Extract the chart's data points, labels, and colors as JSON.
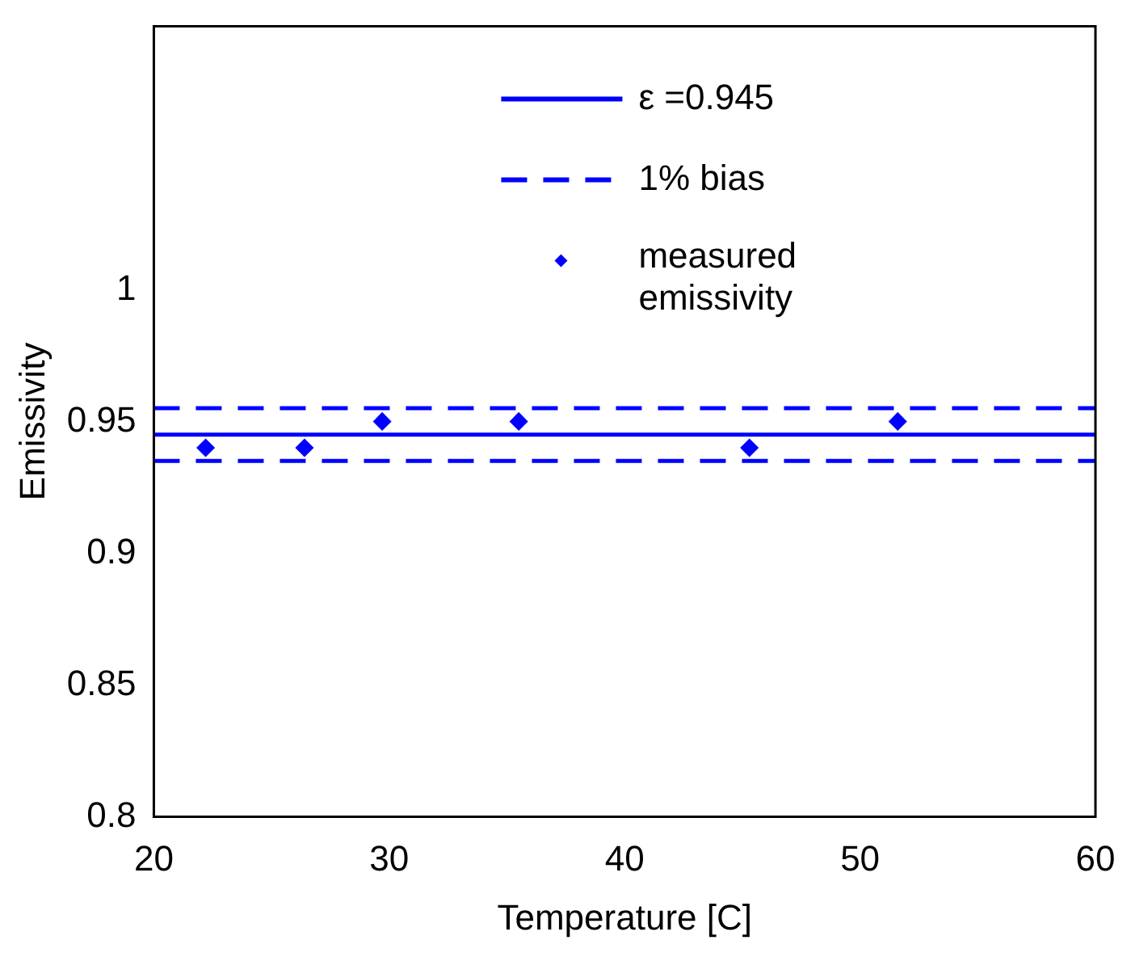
{
  "chart_data": {
    "type": "line",
    "xlabel": "Temperature [C]",
    "ylabel": "Emissivity",
    "xlim": [
      20,
      60
    ],
    "xticks": [
      20,
      30,
      40,
      50,
      60
    ],
    "ylim": [
      0.8,
      1.1
    ],
    "yticks": [
      0.8,
      0.85,
      0.9,
      0.95,
      1
    ],
    "grid": false,
    "legend": "top right",
    "series": [
      {
        "name": "ε =0.945",
        "type": "line",
        "color": "#0000ff",
        "line_style": "solid",
        "marker": "none",
        "x": [
          20,
          60
        ],
        "values": [
          0.945,
          0.945
        ]
      },
      {
        "name": "1% bias",
        "type": "line",
        "color": "#0000ff",
        "line_style": "dashed",
        "marker": "none",
        "x": [
          20,
          60
        ],
        "values": [
          0.955,
          0.955
        ]
      },
      {
        "type": "line",
        "color": "#0000ff",
        "line_style": "dashed",
        "marker": "none",
        "x": [
          20,
          60
        ],
        "values": [
          0.935,
          0.935
        ]
      },
      {
        "name": "measured emissivity",
        "type": "scatter",
        "color": "#0000ff",
        "marker": "diamond",
        "x": [
          22.2,
          26.4,
          29.7,
          35.5,
          45.3,
          51.6
        ],
        "values": [
          0.94,
          0.94,
          0.95,
          0.95,
          0.94,
          0.95
        ]
      }
    ]
  }
}
